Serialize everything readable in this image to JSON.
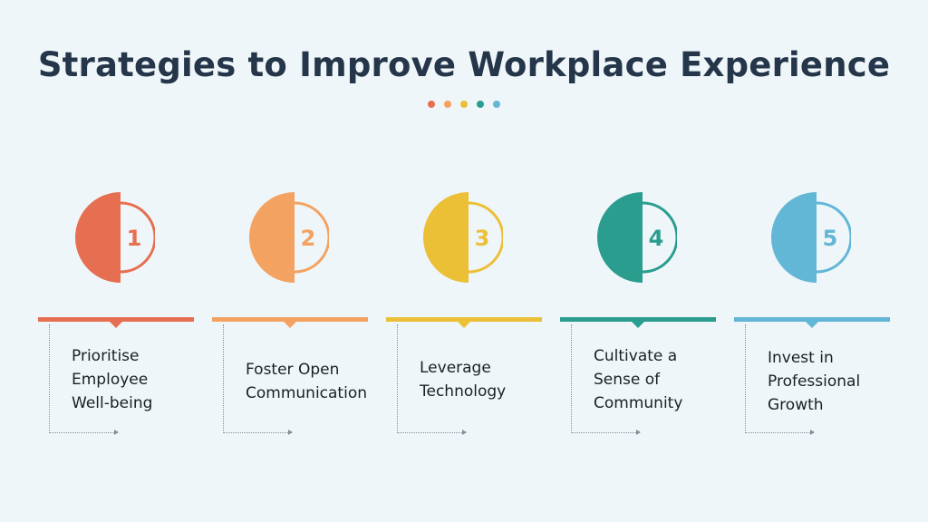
{
  "title": "Strategies to Improve Workplace Experience",
  "dot_colors": [
    "#e76f51",
    "#f4a261",
    "#ebbf36",
    "#2a9d8f",
    "#62b6d6"
  ],
  "steps": [
    {
      "number": "1",
      "color": "#e76f51",
      "lines": [
        "Prioritise",
        "Employee",
        "Well-being"
      ]
    },
    {
      "number": "2",
      "color": "#f4a261",
      "lines": [
        "Foster Open",
        "Communication"
      ]
    },
    {
      "number": "3",
      "color": "#ebbf36",
      "lines": [
        "Leverage",
        "Technology"
      ]
    },
    {
      "number": "4",
      "color": "#2a9d8f",
      "lines": [
        "Cultivate a",
        "Sense of",
        "Community"
      ]
    },
    {
      "number": "5",
      "color": "#62b6d6",
      "lines": [
        "Invest in",
        "Professional",
        "Growth"
      ]
    }
  ]
}
